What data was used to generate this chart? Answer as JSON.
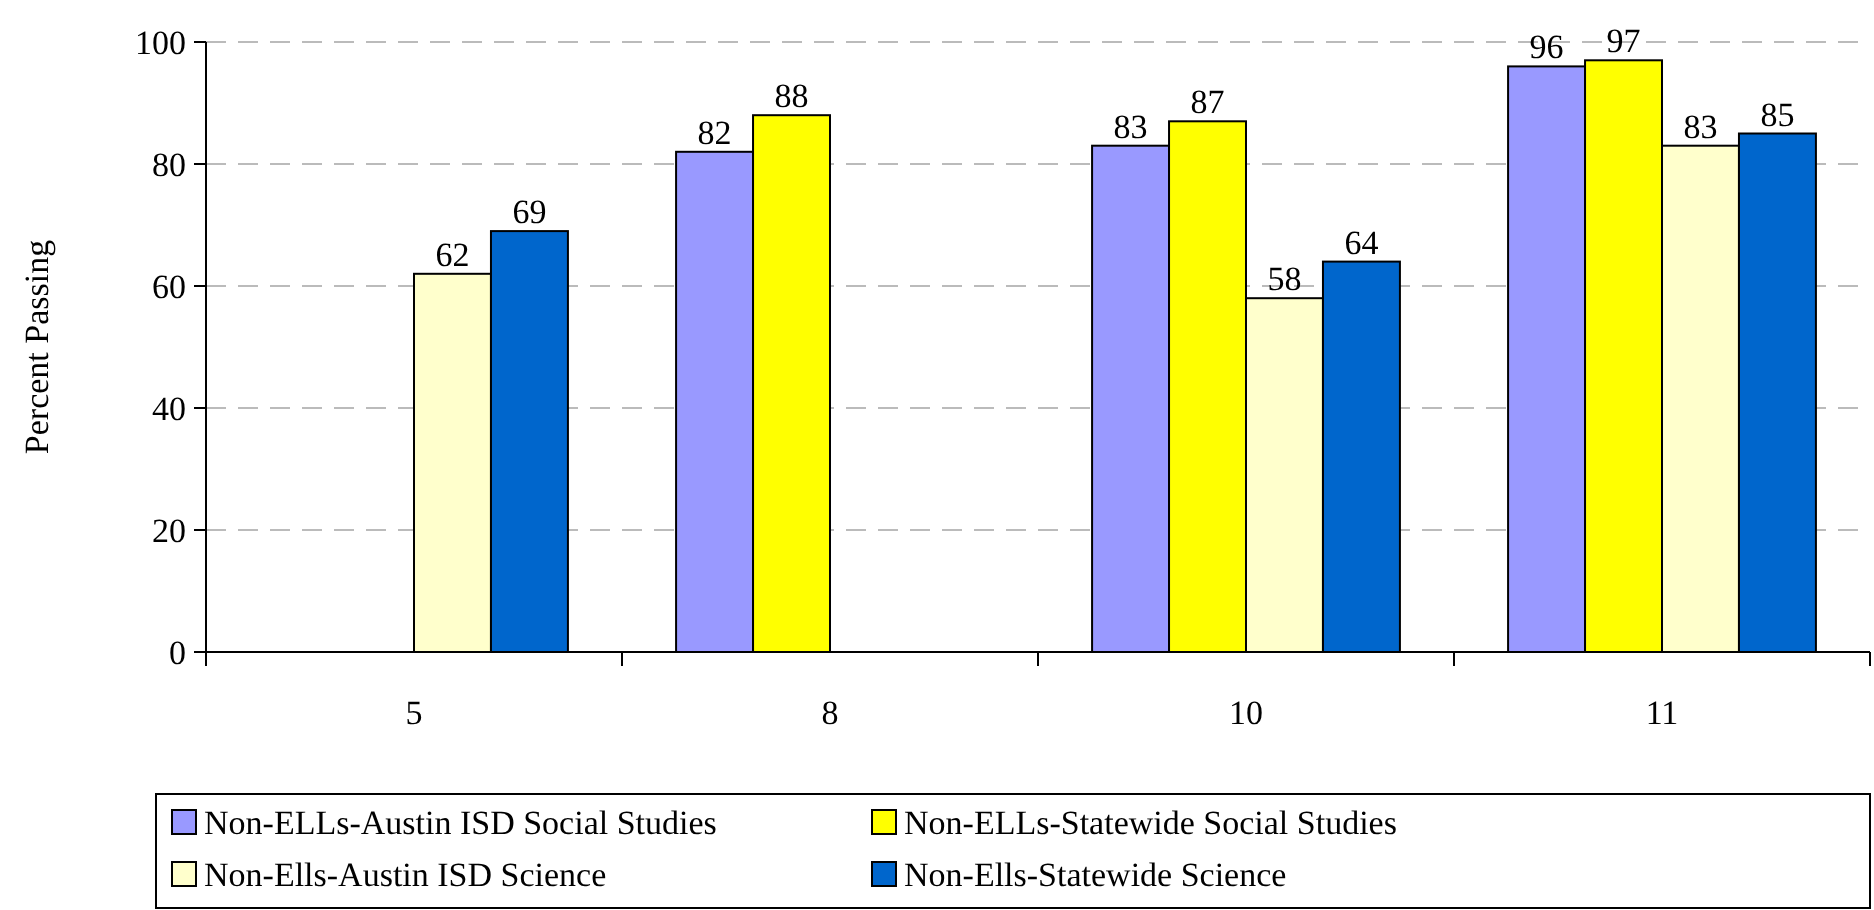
{
  "chart_data": {
    "type": "bar",
    "ylabel": "Percent Passing",
    "categories": [
      "5",
      "8",
      "10",
      "11"
    ],
    "series": [
      {
        "name": "Non-ELLs-Austin ISD Social Studies",
        "color": "#9999ff",
        "values": [
          null,
          82,
          83,
          96
        ]
      },
      {
        "name": "Non-ELLs-Statewide Social Studies",
        "color": "#ffff00",
        "values": [
          null,
          88,
          87,
          97
        ]
      },
      {
        "name": "Non-Ells-Austin ISD Science",
        "color": "#ffffcc",
        "values": [
          62,
          null,
          58,
          83
        ]
      },
      {
        "name": "Non-Ells-Statewide Science",
        "color": "#0066cc",
        "values": [
          69,
          null,
          64,
          85
        ]
      }
    ],
    "ylim": [
      0,
      100
    ],
    "yticks": [
      0,
      20,
      40,
      60,
      80,
      100
    ],
    "grid": "y",
    "legend": "bottom",
    "data_labels": true
  }
}
